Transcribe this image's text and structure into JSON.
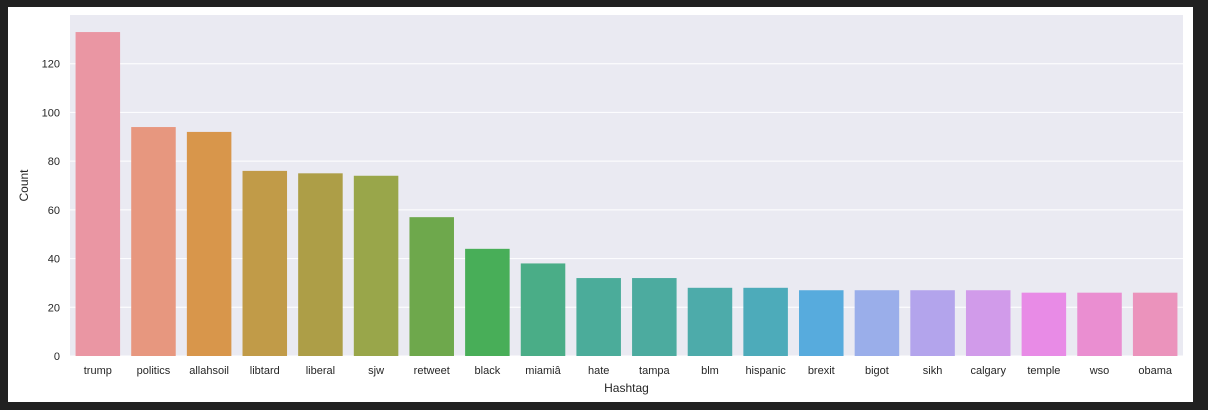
{
  "chart_data": {
    "type": "bar",
    "title": "",
    "xlabel": "Hashtag",
    "ylabel": "Count",
    "categories": [
      "trump",
      "politics",
      "allahsoil",
      "libtard",
      "liberal",
      "sjw",
      "retweet",
      "black",
      "miamiâ",
      "hate",
      "tampa",
      "blm",
      "hispanic",
      "brexit",
      "bigot",
      "sikh",
      "calgary",
      "temple",
      "wso",
      "obama"
    ],
    "values": [
      133,
      94,
      92,
      76,
      75,
      74,
      57,
      44,
      38,
      32,
      32,
      28,
      28,
      27,
      27,
      27,
      27,
      26,
      26,
      26
    ],
    "colors": [
      "#ea96a3",
      "#e7977f",
      "#d8964b",
      "#c19b48",
      "#ad9e47",
      "#99a64a",
      "#6ea84c",
      "#48ae58",
      "#4aad87",
      "#4bac9a",
      "#4cab9f",
      "#4dabaa",
      "#4dabba",
      "#57abdd",
      "#9aaeea",
      "#b3a4ec",
      "#d19bea",
      "#e88be6",
      "#ea8ed1",
      "#eb93bc"
    ],
    "ylim": [
      0,
      140
    ],
    "yticks": [
      0,
      20,
      40,
      60,
      80,
      100,
      120
    ],
    "grid": true,
    "legend": false,
    "style": {
      "plot_background": "#eaeaf2",
      "grid_color": "#ffffff",
      "text_color": "#262626"
    }
  }
}
